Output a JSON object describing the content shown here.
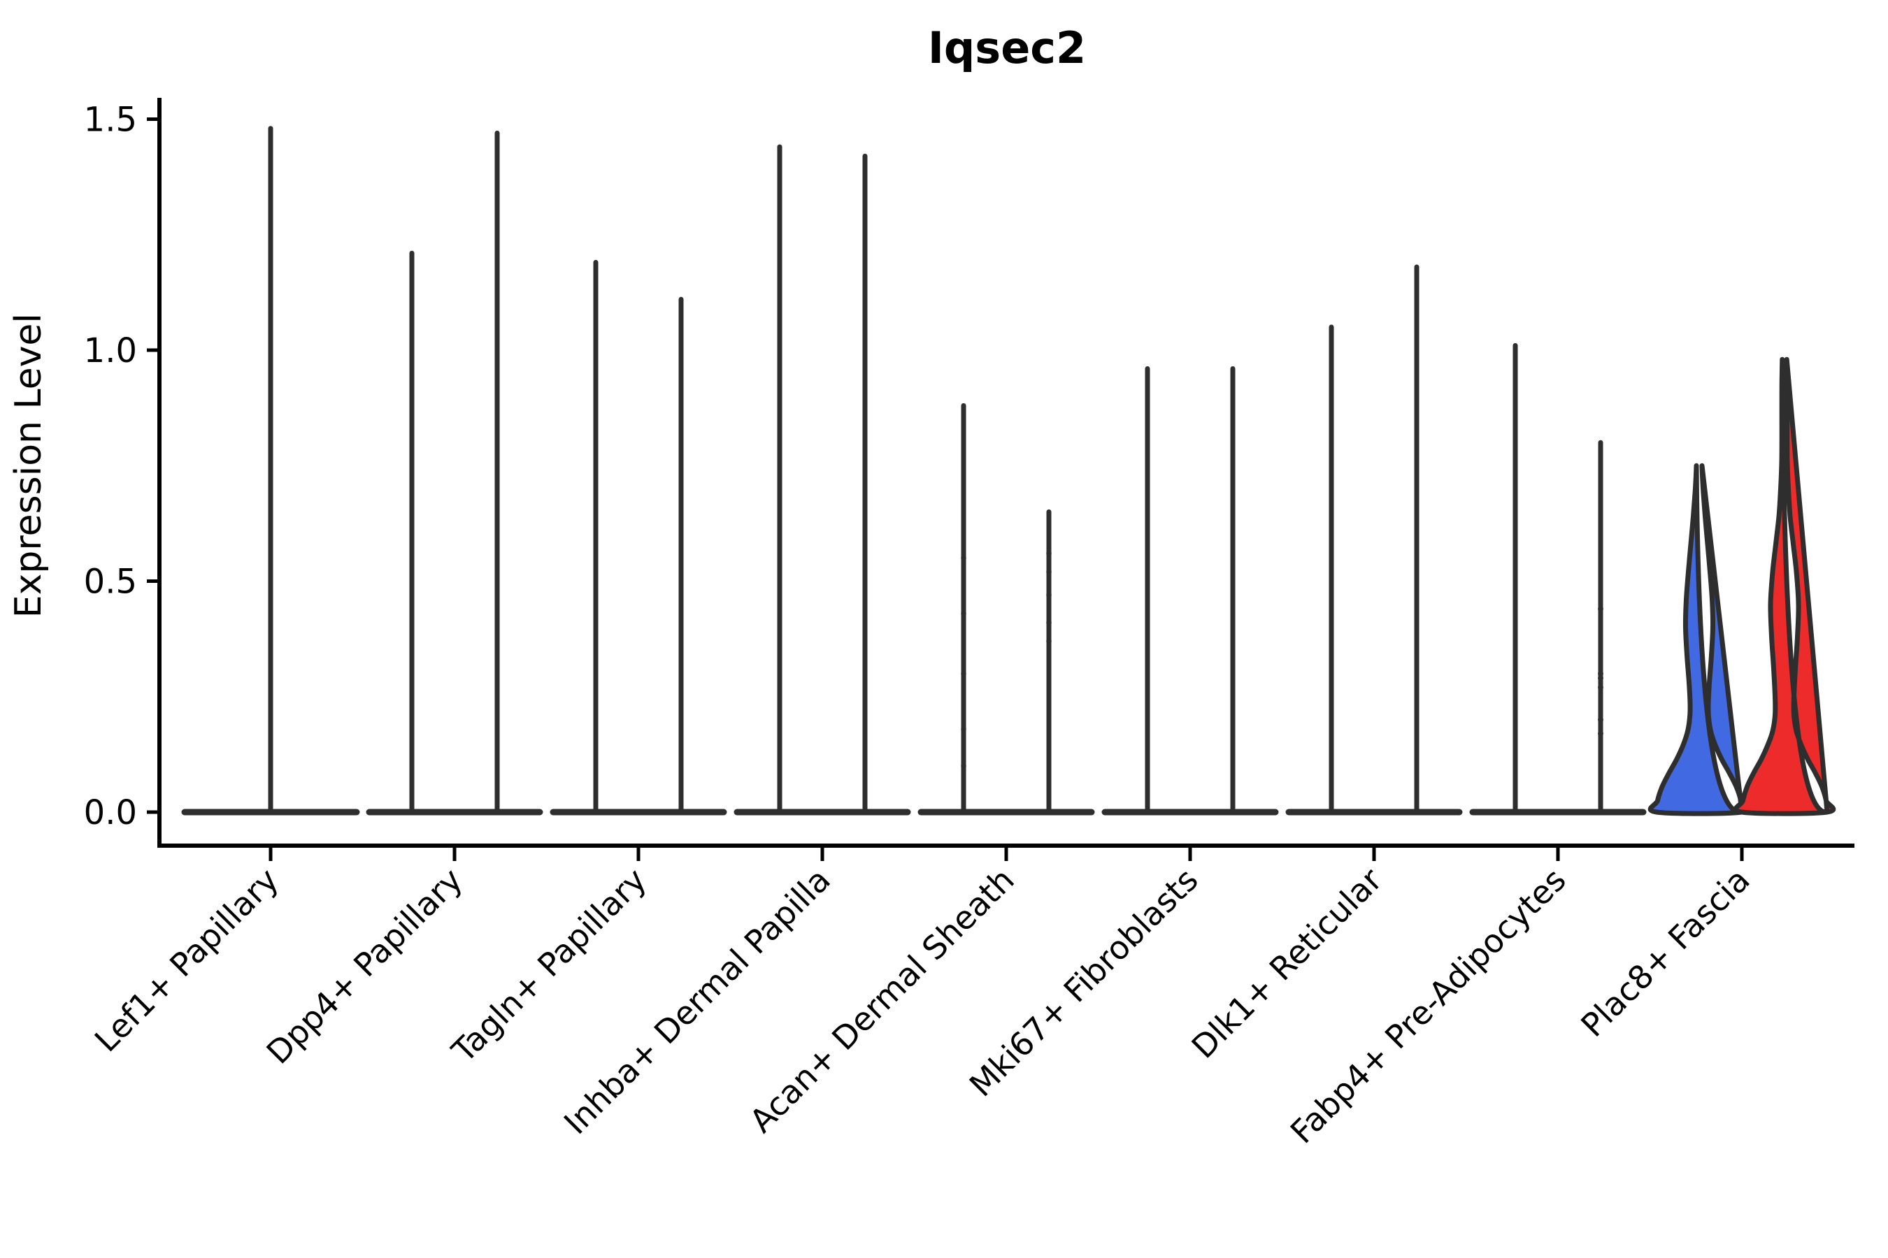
{
  "title": "Iqsec2",
  "chart_data": {
    "type": "violin",
    "title": "Iqsec2",
    "ylabel": "Expression Level",
    "xlabel": "",
    "ylim": [
      0,
      1.55
    ],
    "yticks": [
      0.0,
      0.5,
      1.0,
      1.5
    ],
    "ytick_labels": [
      "0.0",
      "0.5",
      "1.0",
      "1.5"
    ],
    "grid": false,
    "legend_position": "none",
    "ink_color": "#2E2E2E",
    "axis_color": "#000000",
    "split_colors": {
      "blue": "#4169E1",
      "red": "#EE2B2B"
    },
    "categories": [
      "Lef1+ Papillary",
      "Dpp4+ Papillary",
      "Tagln+ Papillary",
      "Inhba+ Dermal Papilla",
      "Acan+ Dermal Sheath",
      "Mki67+ Fibroblasts",
      "Dlk1+ Reticular",
      "Fabp4+ Pre-Adipocytes",
      "Plac8+ Fascia"
    ],
    "note": "Most cells have zero expression: every violin collapses to a flat base at 0 with a thin density spike up to its max value. Only Plac8+ Fascia shows substantial expression, with a blue and a red split-group violin.",
    "violin_groups": [
      {
        "category": "Lef1+ Papillary",
        "layout": "single",
        "violins": [
          {
            "group": "all",
            "style": "spike",
            "fill": "none",
            "peak": 1.48,
            "dots": []
          }
        ]
      },
      {
        "category": "Dpp4+ Papillary",
        "layout": "pair",
        "violins": [
          {
            "group": "left",
            "style": "spike",
            "fill": "none",
            "peak": 1.21,
            "dots": []
          },
          {
            "group": "right",
            "style": "spike",
            "fill": "none",
            "peak": 1.47,
            "dots": []
          }
        ]
      },
      {
        "category": "Tagln+ Papillary",
        "layout": "pair",
        "violins": [
          {
            "group": "left",
            "style": "spike",
            "fill": "none",
            "peak": 1.19,
            "dots": []
          },
          {
            "group": "right",
            "style": "spike",
            "fill": "none",
            "peak": 1.11,
            "dots": []
          }
        ]
      },
      {
        "category": "Inhba+ Dermal Papilla",
        "layout": "pair",
        "violins": [
          {
            "group": "left",
            "style": "spike",
            "fill": "none",
            "peak": 1.44,
            "dots": []
          },
          {
            "group": "right",
            "style": "spike",
            "fill": "none",
            "peak": 1.42,
            "dots": []
          }
        ]
      },
      {
        "category": "Acan+ Dermal Sheath",
        "layout": "pair",
        "violins": [
          {
            "group": "left",
            "style": "spike",
            "fill": "none",
            "peak": 0.88,
            "dots": [
              0.55,
              0.43,
              0.3,
              0.18,
              0.1
            ],
            "dot_opacity": 0.4
          },
          {
            "group": "right",
            "style": "spike",
            "fill": "none",
            "peak": 0.65,
            "dots": [
              0.56,
              0.52,
              0.47,
              0.41,
              0.37
            ],
            "dot_opacity": 0.4
          }
        ]
      },
      {
        "category": "Mki67+ Fibroblasts",
        "layout": "pair",
        "violins": [
          {
            "group": "left",
            "style": "spike",
            "fill": "none",
            "peak": 0.96,
            "dots": []
          },
          {
            "group": "right",
            "style": "spike",
            "fill": "none",
            "peak": 0.96,
            "dots": []
          }
        ]
      },
      {
        "category": "Dlk1+ Reticular",
        "layout": "pair",
        "violins": [
          {
            "group": "left",
            "style": "spike",
            "fill": "none",
            "peak": 1.05,
            "dots": []
          },
          {
            "group": "right",
            "style": "spike",
            "fill": "none",
            "peak": 1.18,
            "dots": []
          }
        ]
      },
      {
        "category": "Fabp4+ Pre-Adipocytes",
        "layout": "pair",
        "violins": [
          {
            "group": "left",
            "style": "spike",
            "fill": "none",
            "peak": 1.01,
            "dots": []
          },
          {
            "group": "right",
            "style": "spike",
            "fill": "none",
            "peak": 0.8,
            "dots": [
              0.44,
              0.3,
              0.29,
              0.27,
              0.2,
              0.17
            ],
            "dot_opacity": 0.85
          }
        ]
      },
      {
        "category": "Plac8+ Fascia",
        "layout": "pair",
        "violins": [
          {
            "group": "left",
            "style": "shaped",
            "fill": "#4169E1",
            "peak": 0.75,
            "profile": [
              [
                0.0,
                61
              ],
              [
                0.025,
                59.5
              ],
              [
                0.055,
                53
              ],
              [
                0.085,
                43
              ],
              [
                0.115,
                32
              ],
              [
                0.145,
                23
              ],
              [
                0.175,
                16.5
              ],
              [
                0.205,
                13.5
              ],
              [
                0.235,
                13
              ],
              [
                0.28,
                14.5
              ],
              [
                0.34,
                17.5
              ],
              [
                0.4,
                19.5
              ],
              [
                0.46,
                18.5
              ],
              [
                0.52,
                15.5
              ],
              [
                0.58,
                12
              ],
              [
                0.64,
                8.5
              ],
              [
                0.69,
                6
              ],
              [
                0.73,
                4.5
              ],
              [
                0.75,
                4
              ]
            ],
            "dots": []
          },
          {
            "group": "right",
            "style": "shaped",
            "fill": "#EE2B2B",
            "peak": 0.98,
            "profile": [
              [
                0.0,
                61
              ],
              [
                0.025,
                59.5
              ],
              [
                0.055,
                53.5
              ],
              [
                0.085,
                44
              ],
              [
                0.115,
                33
              ],
              [
                0.145,
                24
              ],
              [
                0.175,
                17
              ],
              [
                0.21,
                13.5
              ],
              [
                0.25,
                13.5
              ],
              [
                0.31,
                15.5
              ],
              [
                0.38,
                18.5
              ],
              [
                0.45,
                20
              ],
              [
                0.52,
                17
              ],
              [
                0.58,
                12.5
              ],
              [
                0.64,
                8
              ],
              [
                0.7,
                5.5
              ],
              [
                0.76,
                4
              ],
              [
                0.84,
                3.8
              ],
              [
                0.92,
                3.8
              ],
              [
                0.98,
                3.2
              ]
            ],
            "dots": []
          }
        ]
      }
    ]
  }
}
